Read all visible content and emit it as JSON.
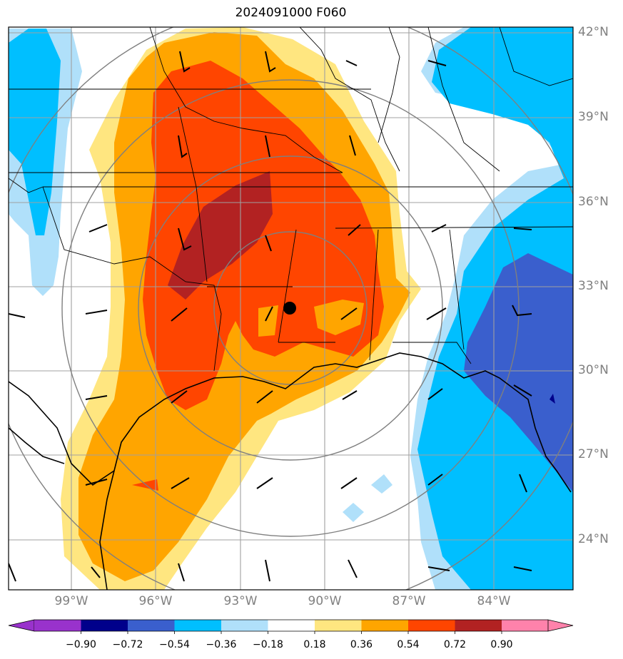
{
  "title": "2024091000 F060",
  "lat_labels": [
    "42°N",
    "39°N",
    "36°N",
    "33°N",
    "30°N",
    "27°N",
    "24°N"
  ],
  "lon_labels": [
    "99°W",
    "96°W",
    "93°W",
    "90°W",
    "87°W",
    "84°W"
  ],
  "colorbar": {
    "ticks": [
      "−0.90",
      "−0.72",
      "−0.54",
      "−0.36",
      "−0.18",
      "0.18",
      "0.36",
      "0.54",
      "0.72",
      "0.90"
    ],
    "colors": [
      "#9932cc",
      "#00008b",
      "#3a5fcd",
      "#00bfff",
      "#b0e0fa",
      "#ffffff",
      "#ffe680",
      "#ffa500",
      "#ff4500",
      "#b22222",
      "#ff82ab"
    ]
  },
  "levels": {
    "pos_1": "#ffe680",
    "pos_2": "#ffa500",
    "pos_3": "#ff4500",
    "pos_4": "#b22222",
    "neg_1": "#b0e0fa",
    "neg_2": "#00bfff",
    "neg_3": "#3a5fcd",
    "neg_4": "#00008b"
  }
}
